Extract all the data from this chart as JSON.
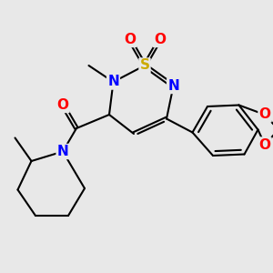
{
  "bg_color": "#e8e8e8",
  "atom_colors": {
    "S": "#ccaa00",
    "N": "#0000ff",
    "O": "#ff0000",
    "C": "#000000"
  },
  "bond_color": "#000000",
  "bond_width": 1.5,
  "figsize": [
    3.0,
    3.0
  ],
  "dpi": 100,
  "xlim": [
    0,
    10
  ],
  "ylim": [
    0,
    10
  ]
}
